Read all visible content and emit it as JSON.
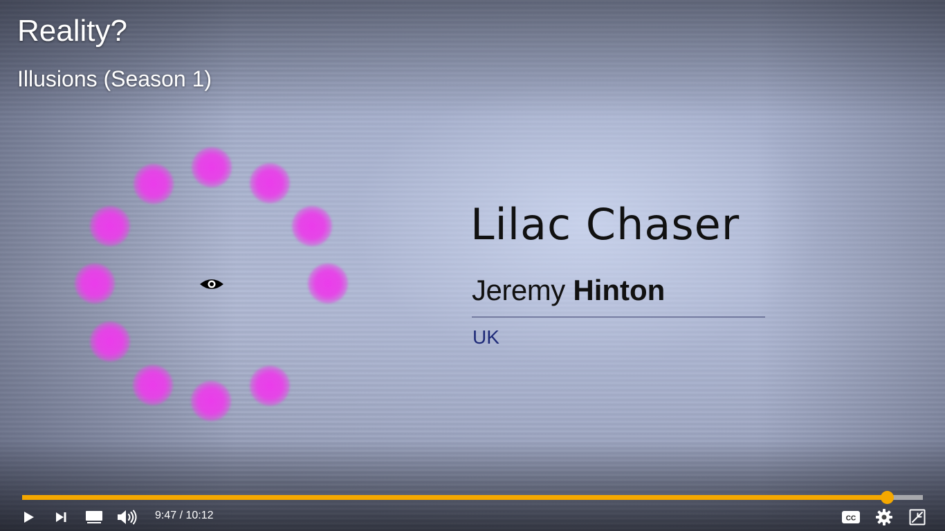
{
  "video": {
    "title": "Reality?",
    "subtitle": "Illusions (Season 1)"
  },
  "frame": {
    "illusion_name": "Lilac Chaser",
    "author_first": "Jeremy",
    "author_last": "Hinton",
    "author_country": "UK",
    "dot_color": "#e83ee8",
    "fixation_icon": "eye-icon"
  },
  "controls": {
    "accent_color": "#f5a800",
    "progress": 0.96,
    "current_time": "9:47",
    "time_separator": "/",
    "duration": "10:12",
    "icons": {
      "play": "play-icon",
      "next": "skip-next-icon",
      "miniplayer": "miniplayer-icon",
      "volume": "volume-icon",
      "captions": "closed-captions-icon",
      "settings": "gear-icon",
      "exit_fullscreen": "exit-fullscreen-icon"
    }
  }
}
